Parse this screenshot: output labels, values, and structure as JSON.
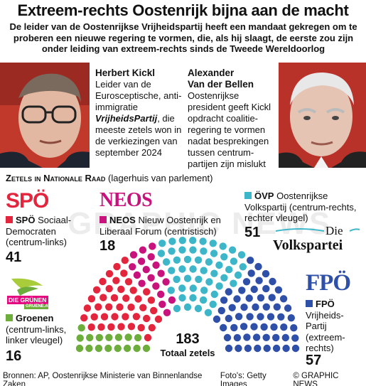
{
  "header": {
    "title": "Extreem-rechts Oostenrijk bijna aan de macht",
    "subtitle": "De leider van de Oostenrijkse Vrijheidspartij heeft een mandaat gekregen om te proberen een nieuwe regering te vormen, die, als hij slaagt, de eerste zou zijn onder leiding van extreem-rechts sinds de Tweede Wereldoorlog"
  },
  "kickl": {
    "name": "Herbert Kickl",
    "line1": "Leider van de Eurosceptische, anti-immigratie",
    "party": "VrijheidsPartij",
    "line2": ", die meeste zetels won in de verkiezingen van september 2024"
  },
  "vdb": {
    "name1": "Alexander",
    "name2": "Van der Bellen",
    "text": "Oostenrijkse president geeft Kickl opdracht coalitie-regering te vormen nadat besprekingen tussen centrum-partijen zijn mislukt"
  },
  "section": {
    "title": "Zetels in Nationale Raad",
    "note": "(lagerhuis van parlement)"
  },
  "logos": {
    "spo": "SPÖ",
    "neos": "NEOS",
    "gruene1": "DIE GRÜNEN",
    "gruene2": "GRUENE.AT",
    "vp1": "Die",
    "vp2": "Volkspartei",
    "fpo": "FPÖ"
  },
  "colors": {
    "spo": "#e3263d",
    "neos": "#c8127c",
    "ovp": "#3cb6c8",
    "fpo": "#2f50a8",
    "gruene": "#6dad3c"
  },
  "chart_data": {
    "type": "parliament",
    "title": "Zetels in Nationale Raad (lagerhuis van parlement)",
    "total_label": "Totaal zetels",
    "total": 183,
    "parties": [
      {
        "key": "gruene",
        "abbr": "Groenen",
        "desc": "(centrum-links, linker vleugel)",
        "seats": 16
      },
      {
        "key": "spo",
        "abbr": "SPÖ",
        "desc": "Sociaal-Democraten (centrum-links)",
        "seats": 41
      },
      {
        "key": "neos",
        "abbr": "NEOS",
        "desc": "Nieuw Oostenrijk en Liberaal Forum (centristisch)",
        "seats": 18
      },
      {
        "key": "ovp",
        "abbr": "ÖVP",
        "desc": "Oostenrijkse Volkspartij (centrum-rechts, rechter vleugel)",
        "seats": 51
      },
      {
        "key": "fpo",
        "abbr": "FPÖ",
        "desc": "Vrijheids-Partij (extreem-rechts)",
        "seats": 57
      }
    ]
  },
  "footer": {
    "sources": "Bronnen: AP, Oostenrijkse Ministerie van Binnenlandse Zaken",
    "photos": "Foto's: Getty Images",
    "credit": "© GRAPHIC NEWS"
  }
}
